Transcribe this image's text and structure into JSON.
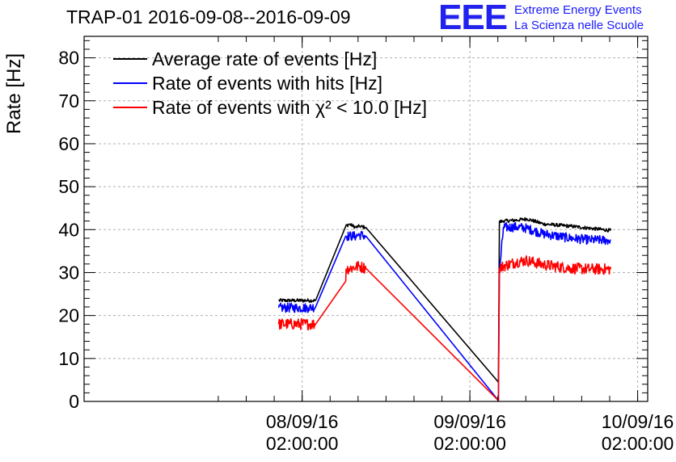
{
  "header": {
    "title": "TRAP-01 2016-09-08--2016-09-09",
    "logo_text": "EEE",
    "logo_line1": "Extreme Energy Events",
    "logo_line2": "La Scienza nelle Scuole"
  },
  "chart_data": {
    "type": "line",
    "title": "TRAP-01 2016-09-08--2016-09-09",
    "xlabel": "",
    "ylabel": "Rate [Hz]",
    "xlim": [
      -0.65,
      1.03
    ],
    "ylim": [
      0,
      85
    ],
    "grid": true,
    "legend_position": "top-left",
    "yticks": [
      0,
      10,
      20,
      30,
      40,
      50,
      60,
      70,
      80
    ],
    "xticks": [
      {
        "x": 0.0,
        "line1": "08/09/16",
        "line2": "02:00:00"
      },
      {
        "x": 0.5,
        "line1": "09/09/16",
        "line2": "02:00:00"
      },
      {
        "x": 1.0,
        "line1": "10/09/16",
        "line2": "02:00:00"
      }
    ],
    "x_units": "days since 08/09/16 02:00:00",
    "series": [
      {
        "name": "Average rate of events [Hz]",
        "color": "#000000",
        "noise": 0.4,
        "x": [
          -0.07,
          0.02,
          0.04,
          0.13,
          0.14,
          0.16,
          0.17,
          0.19,
          0.585,
          0.588,
          0.6,
          0.64,
          0.67,
          0.72,
          0.8,
          0.86,
          0.92
        ],
        "values": [
          23.5,
          23.5,
          23.5,
          40.8,
          41.3,
          40.5,
          40.8,
          40.5,
          4.5,
          41.8,
          42.0,
          42.2,
          42.5,
          41.3,
          40.8,
          40.3,
          39.8
        ]
      },
      {
        "name": "Rate of events with hits [Hz]",
        "color": "#0000ff",
        "noise": 1.1,
        "x": [
          -0.07,
          0.02,
          0.04,
          0.13,
          0.14,
          0.16,
          0.17,
          0.19,
          0.585,
          0.588,
          0.6,
          0.64,
          0.67,
          0.72,
          0.8,
          0.86,
          0.92
        ],
        "values": [
          21.8,
          21.8,
          22.0,
          38.5,
          38.5,
          38.5,
          38.8,
          38.5,
          0.2,
          30.0,
          40.5,
          40.6,
          40.3,
          39.0,
          38.0,
          37.6,
          37.5
        ]
      },
      {
        "name": "Rate of events with χ² < 10.0 [Hz]",
        "color": "#ff0000",
        "noise": 1.3,
        "x": [
          -0.07,
          0.02,
          0.04,
          0.13,
          0.131,
          0.16,
          0.17,
          0.19,
          0.585,
          0.588,
          0.6,
          0.64,
          0.67,
          0.72,
          0.8,
          0.86,
          0.92
        ],
        "values": [
          18.0,
          18.0,
          18.0,
          28.0,
          30.8,
          31.3,
          31.5,
          31.0,
          0.2,
          31.0,
          31.5,
          32.5,
          32.8,
          31.8,
          31.0,
          30.8,
          30.8
        ]
      }
    ]
  }
}
